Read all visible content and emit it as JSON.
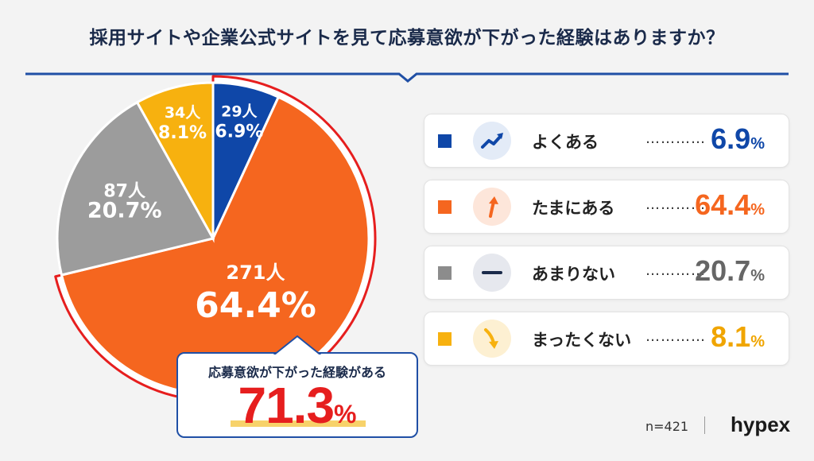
{
  "title": "採用サイトや企業公式サイトを見て応募意欲が下がった経験はありますか？",
  "colors": {
    "blue": "#0f47a8",
    "orange": "#f5661f",
    "gray": "#9c9c9c",
    "yellow": "#f7b10f",
    "accent_red": "#e61e1e",
    "navy": "#1f4fa5"
  },
  "chart_data": {
    "type": "pie",
    "start": "12 o'clock, clockwise",
    "slices": [
      {
        "label": "よくある",
        "count": "29人",
        "value": 6.9,
        "percent": "6.9%",
        "color": "#0f47a8",
        "icon": "trend-up-icon"
      },
      {
        "label": "たまにある",
        "count": "271人",
        "value": 64.4,
        "percent": "64.4%",
        "color": "#f5661f",
        "icon": "arrow-up-icon"
      },
      {
        "label": "あまりない",
        "count": "87人",
        "value": 20.7,
        "percent": "20.7%",
        "color": "#9c9c9c",
        "icon": "minus-icon"
      },
      {
        "label": "まったくない",
        "count": "34人",
        "value": 8.1,
        "percent": "8.1%",
        "color": "#f7b10f",
        "icon": "arrow-down-right-icon"
      }
    ],
    "highlight": {
      "slices": [
        "よくある",
        "たまにある"
      ],
      "outline_color": "#e61e1e"
    }
  },
  "legend": {
    "dots": "…………",
    "items": [
      {
        "label": "よくある",
        "num": "6.9",
        "unit": "%"
      },
      {
        "label": "たまにある",
        "num": "64.4",
        "unit": "%"
      },
      {
        "label": "あまりない",
        "num": "20.7",
        "unit": "%"
      },
      {
        "label": "まったくない",
        "num": "8.1",
        "unit": "%"
      }
    ]
  },
  "callout": {
    "text": "応募意欲が下がった経験がある",
    "num": "71.3",
    "unit": "%"
  },
  "footer": {
    "n": "n=421",
    "brand": "hypex"
  }
}
